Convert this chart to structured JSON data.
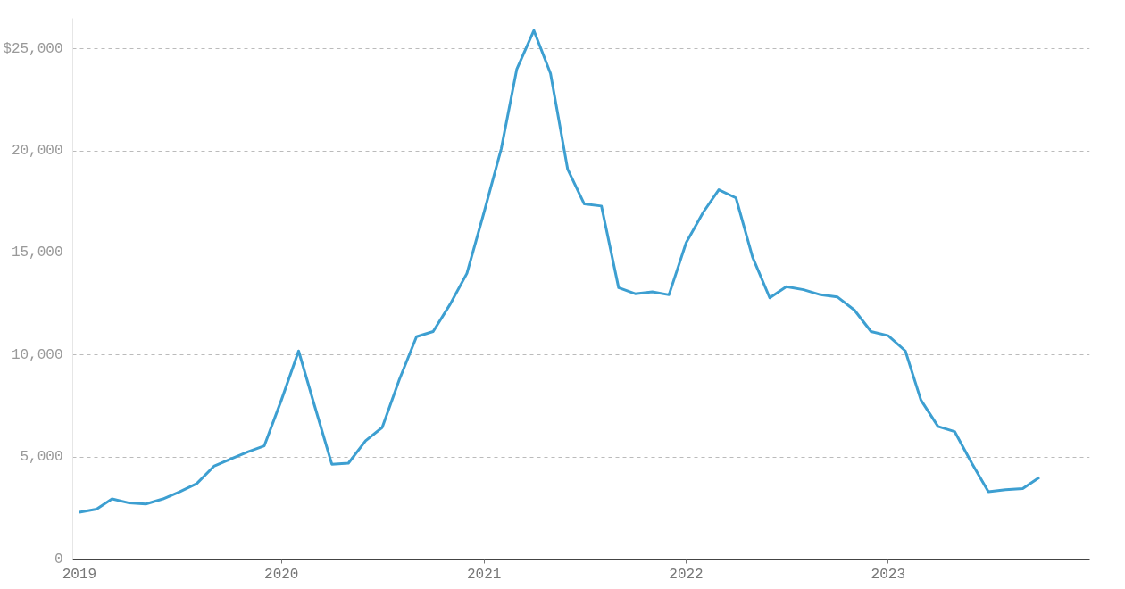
{
  "chart_data": {
    "type": "line",
    "x": [
      "2019-01",
      "2019-02",
      "2019-03",
      "2019-04",
      "2019-05",
      "2019-06",
      "2019-07",
      "2019-08",
      "2019-09",
      "2019-10",
      "2019-11",
      "2019-12",
      "2020-01",
      "2020-02",
      "2020-03",
      "2020-04",
      "2020-05",
      "2020-06",
      "2020-07",
      "2020-08",
      "2020-09",
      "2020-10",
      "2020-11",
      "2020-12",
      "2021-01",
      "2021-02",
      "2021-03",
      "2021-04",
      "2021-05",
      "2021-06",
      "2021-07",
      "2021-08",
      "2021-09",
      "2021-10",
      "2021-11",
      "2021-12",
      "2022-01",
      "2022-02",
      "2022-03",
      "2022-04",
      "2022-05",
      "2022-06",
      "2022-07",
      "2022-08",
      "2022-09",
      "2022-10",
      "2022-11",
      "2022-12",
      "2023-01",
      "2023-02",
      "2023-03",
      "2023-04",
      "2023-05",
      "2023-06",
      "2023-07",
      "2023-08",
      "2023-09",
      "2023-10"
    ],
    "series": [
      {
        "color": "#3d9fd1",
        "values": [
          2300,
          2450,
          2950,
          2750,
          2700,
          2950,
          3300,
          3700,
          4550,
          4900,
          5250,
          5550,
          7800,
          10200,
          7500,
          4650,
          4700,
          5800,
          6450,
          8800,
          10900,
          11150,
          12500,
          14000,
          17000,
          20100,
          24000,
          25900,
          23800,
          19100,
          17400,
          17300,
          13300,
          13000,
          13100,
          12950,
          15500,
          17000,
          18100,
          17700,
          14800,
          12800,
          13350,
          13200,
          12950,
          12850,
          12200,
          11150,
          10950,
          10200,
          7800,
          6500,
          6250,
          4700,
          3300,
          3400,
          3450,
          4000
        ]
      }
    ],
    "xlim": [
      "2018-12-20",
      "2023-12-31"
    ],
    "xticks": [
      "2019",
      "2020",
      "2021",
      "2022",
      "2023"
    ],
    "ylim": [
      0,
      26500
    ],
    "yticks": [
      0,
      {
        "value": 5000,
        "label": "5,000"
      },
      {
        "value": 10000,
        "label": "10,000"
      },
      {
        "value": 15000,
        "label": "15,000"
      },
      {
        "value": 20000,
        "label": "20,000"
      },
      {
        "value": 25000,
        "label": "$25,000"
      }
    ],
    "grid": "y",
    "marker": "none",
    "line_style": "solid"
  }
}
